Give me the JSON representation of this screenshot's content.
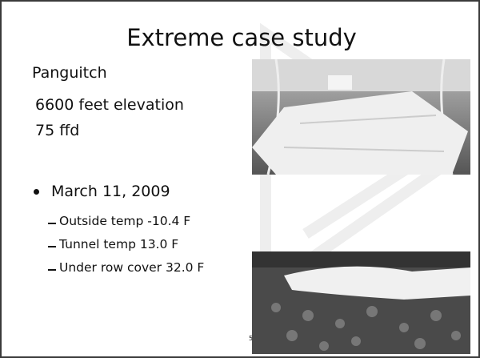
{
  "slide": {
    "title": "Extreme case study",
    "lines": [
      "Panguitch",
      "6600 feet elevation",
      "75 ffd"
    ],
    "bullet": {
      "text": "March 11, 2009",
      "items": [
        "Outside temp -10.4 F",
        "Tunnel temp 13.0 F",
        "Under row cover 32.0 F"
      ]
    },
    "page_number": "5"
  }
}
